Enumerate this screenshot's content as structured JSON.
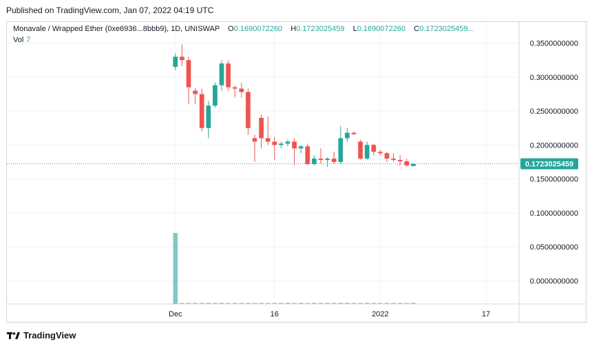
{
  "header": {
    "published": "Published on TradingView.com, Jan 07, 2022 04:19 UTC"
  },
  "legend": {
    "symbol": "Monavale / Wrapped Ether (0xe6936...8bbb9), 1D, UNISWAP",
    "o_label": "O",
    "o_value": "0.1690072260",
    "h_label": "H",
    "h_value": "0.1723025459",
    "l_label": "L",
    "l_value": "0.1690072260",
    "c_label": "C",
    "c_value": "0.1723025459...",
    "vol_label": "Vol",
    "vol_value": "7"
  },
  "footer": {
    "brand": "TradingView"
  },
  "colors": {
    "up": "#26a69a",
    "down": "#ef5350",
    "volume_up": "#80cbc4",
    "volume_down": "#f5a6a4",
    "grid": "#f0f3fa",
    "last_price": "#26a69a"
  },
  "chart_data": {
    "type": "candlestick",
    "y_axis_labels": [
      "0.3500000000",
      "0.3000000000",
      "0.2500000000",
      "0.2000000000",
      "0.1500000000",
      "0.1000000000",
      "0.0500000000",
      "0.0000000000"
    ],
    "y_ticks": [
      0.35,
      0.3,
      0.25,
      0.2,
      0.15,
      0.1,
      0.05,
      0.0
    ],
    "ylim": [
      -0.034,
      0.381
    ],
    "x_axis_labels": [
      {
        "label": "Dec",
        "x": 0
      },
      {
        "label": "16",
        "x": 15
      },
      {
        "label": "2022",
        "x": 31
      },
      {
        "label": "17",
        "x": 47
      }
    ],
    "xlim": [
      -25.5,
      52
    ],
    "last_price": 0.1723025459,
    "last_price_label": "0.1723025459",
    "candles": [
      {
        "x": 0,
        "o": 0.315,
        "h": 0.335,
        "l": 0.31,
        "c": 0.33
      },
      {
        "x": 1,
        "o": 0.33,
        "h": 0.348,
        "l": 0.316,
        "c": 0.325
      },
      {
        "x": 2,
        "o": 0.325,
        "h": 0.33,
        "l": 0.26,
        "c": 0.285
      },
      {
        "x": 3,
        "o": 0.28,
        "h": 0.284,
        "l": 0.26,
        "c": 0.275
      },
      {
        "x": 4,
        "o": 0.275,
        "h": 0.283,
        "l": 0.22,
        "c": 0.225
      },
      {
        "x": 5,
        "o": 0.225,
        "h": 0.265,
        "l": 0.21,
        "c": 0.258
      },
      {
        "x": 6,
        "o": 0.258,
        "h": 0.292,
        "l": 0.255,
        "c": 0.288
      },
      {
        "x": 7,
        "o": 0.288,
        "h": 0.325,
        "l": 0.28,
        "c": 0.32
      },
      {
        "x": 8,
        "o": 0.32,
        "h": 0.325,
        "l": 0.28,
        "c": 0.285
      },
      {
        "x": 9,
        "o": 0.285,
        "h": 0.288,
        "l": 0.27,
        "c": 0.283
      },
      {
        "x": 10,
        "o": 0.283,
        "h": 0.292,
        "l": 0.27,
        "c": 0.278
      },
      {
        "x": 11,
        "o": 0.278,
        "h": 0.283,
        "l": 0.215,
        "c": 0.225
      },
      {
        "x": 12,
        "o": 0.21,
        "h": 0.215,
        "l": 0.175,
        "c": 0.205
      },
      {
        "x": 13,
        "o": 0.24,
        "h": 0.245,
        "l": 0.195,
        "c": 0.21
      },
      {
        "x": 14,
        "o": 0.21,
        "h": 0.242,
        "l": 0.2,
        "c": 0.205
      },
      {
        "x": 15,
        "o": 0.205,
        "h": 0.212,
        "l": 0.178,
        "c": 0.2
      },
      {
        "x": 16,
        "o": 0.2,
        "h": 0.205,
        "l": 0.195,
        "c": 0.202
      },
      {
        "x": 17,
        "o": 0.202,
        "h": 0.208,
        "l": 0.198,
        "c": 0.205
      },
      {
        "x": 18,
        "o": 0.205,
        "h": 0.21,
        "l": 0.17,
        "c": 0.195
      },
      {
        "x": 19,
        "o": 0.195,
        "h": 0.2,
        "l": 0.188,
        "c": 0.198
      },
      {
        "x": 20,
        "o": 0.198,
        "h": 0.202,
        "l": 0.17,
        "c": 0.172
      },
      {
        "x": 21,
        "o": 0.172,
        "h": 0.185,
        "l": 0.17,
        "c": 0.18
      },
      {
        "x": 22,
        "o": 0.18,
        "h": 0.195,
        "l": 0.172,
        "c": 0.178
      },
      {
        "x": 23,
        "o": 0.178,
        "h": 0.182,
        "l": 0.168,
        "c": 0.18
      },
      {
        "x": 24,
        "o": 0.18,
        "h": 0.19,
        "l": 0.172,
        "c": 0.175
      },
      {
        "x": 25,
        "o": 0.175,
        "h": 0.228,
        "l": 0.172,
        "c": 0.21
      },
      {
        "x": 26,
        "o": 0.21,
        "h": 0.225,
        "l": 0.205,
        "c": 0.218
      },
      {
        "x": 27,
        "o": 0.218,
        "h": 0.22,
        "l": 0.215,
        "c": 0.216
      },
      {
        "x": 28,
        "o": 0.205,
        "h": 0.208,
        "l": 0.178,
        "c": 0.18
      },
      {
        "x": 29,
        "o": 0.18,
        "h": 0.205,
        "l": 0.178,
        "c": 0.2
      },
      {
        "x": 30,
        "o": 0.2,
        "h": 0.202,
        "l": 0.185,
        "c": 0.19
      },
      {
        "x": 31,
        "o": 0.19,
        "h": 0.193,
        "l": 0.185,
        "c": 0.188
      },
      {
        "x": 32,
        "o": 0.188,
        "h": 0.19,
        "l": 0.175,
        "c": 0.18
      },
      {
        "x": 33,
        "o": 0.18,
        "h": 0.188,
        "l": 0.175,
        "c": 0.178
      },
      {
        "x": 34,
        "o": 0.178,
        "h": 0.185,
        "l": 0.17,
        "c": 0.176
      },
      {
        "x": 35,
        "o": 0.176,
        "h": 0.18,
        "l": 0.168,
        "c": 0.17
      },
      {
        "x": 36,
        "o": 0.169,
        "h": 0.1723,
        "l": 0.169,
        "c": 0.1723
      }
    ],
    "volume": [
      {
        "x": 0,
        "v": 1.0,
        "up": true
      }
    ]
  }
}
